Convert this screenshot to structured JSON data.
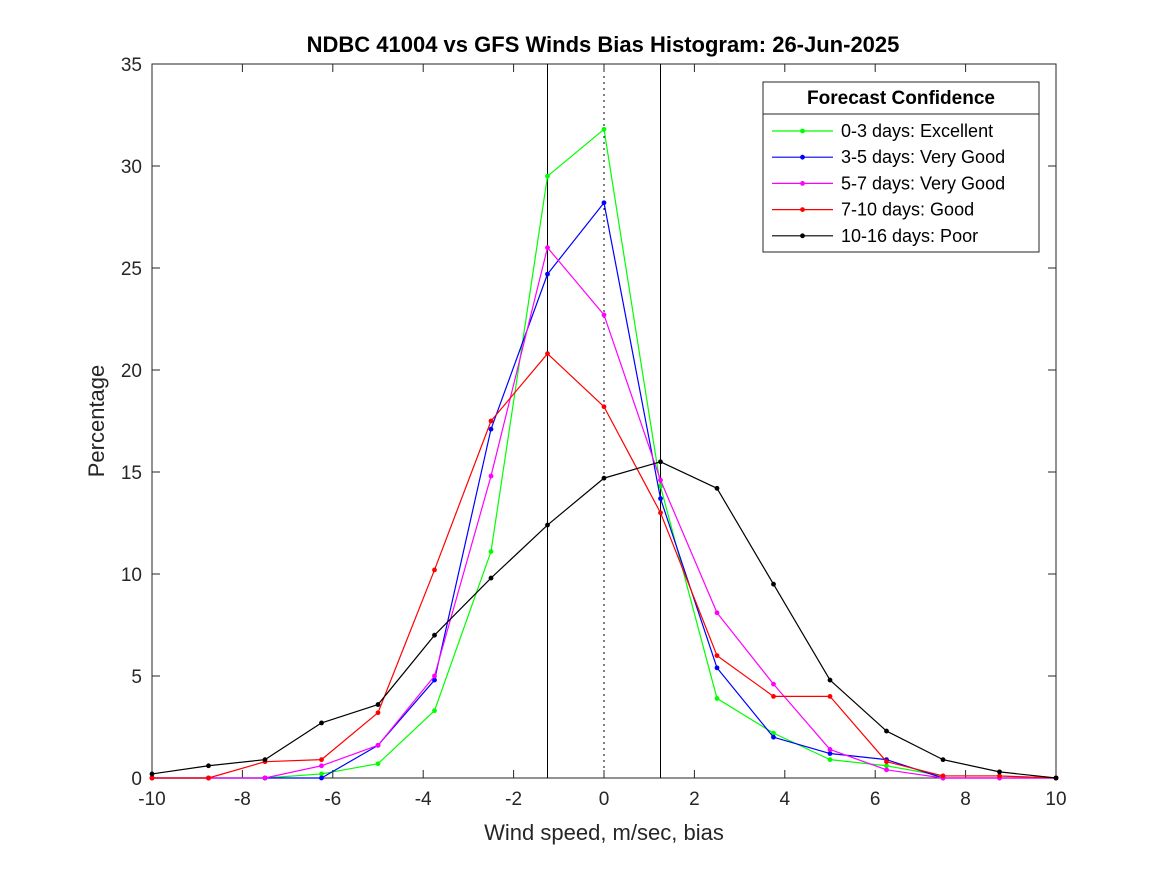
{
  "chart_data": {
    "type": "line",
    "title": "NDBC 41004 vs GFS Winds Bias Histogram: 26-Jun-2025",
    "xlabel": "Wind speed, m/sec, bias",
    "ylabel": "Percentage",
    "xlim": [
      -10,
      10
    ],
    "ylim": [
      0,
      35
    ],
    "xticks": [
      -10,
      -8,
      -6,
      -4,
      -2,
      0,
      2,
      4,
      6,
      8,
      10
    ],
    "yticks": [
      0,
      5,
      10,
      15,
      20,
      25,
      30,
      35
    ],
    "grid": false,
    "legend": {
      "title": "Forecast Confidence",
      "placement": "top-right"
    },
    "vertical_lines": [
      {
        "x": -1.25,
        "style": "solid"
      },
      {
        "x": 0,
        "style": "dotted"
      },
      {
        "x": 1.25,
        "style": "solid"
      }
    ],
    "x": [
      -10,
      -8.75,
      -7.5,
      -6.25,
      -5,
      -3.75,
      -2.5,
      -1.25,
      0,
      1.25,
      2.5,
      3.75,
      5,
      6.25,
      7.5,
      8.75,
      10
    ],
    "series": [
      {
        "name": "0-3 days: Excellent",
        "color": "#00ff00",
        "values": [
          0,
          0,
          0,
          0.2,
          0.7,
          3.3,
          11.1,
          29.5,
          31.8,
          14.3,
          3.9,
          2.2,
          0.9,
          0.6,
          0.1,
          0.1,
          0
        ]
      },
      {
        "name": "3-5 days: Very Good",
        "color": "#0000ff",
        "values": [
          0,
          0,
          0,
          0,
          1.6,
          4.8,
          17.1,
          24.7,
          28.2,
          13.7,
          5.4,
          2.0,
          1.2,
          0.9,
          0,
          0,
          0
        ]
      },
      {
        "name": "5-7 days: Very Good",
        "color": "#ff00ff",
        "values": [
          0,
          0,
          0,
          0.6,
          1.6,
          5.0,
          14.8,
          26.0,
          22.7,
          14.6,
          8.1,
          4.6,
          1.4,
          0.4,
          0,
          0,
          0
        ]
      },
      {
        "name": "7-10 days: Good",
        "color": "#ff0000",
        "values": [
          0,
          0,
          0.8,
          0.9,
          3.2,
          10.2,
          17.5,
          20.8,
          18.2,
          13.0,
          6.0,
          4.0,
          4.0,
          0.8,
          0.1,
          0.1,
          0
        ]
      },
      {
        "name": "10-16 days: Poor",
        "color": "#000000",
        "values": [
          0.2,
          0.6,
          0.9,
          2.7,
          3.6,
          7.0,
          9.8,
          12.4,
          14.7,
          15.5,
          14.2,
          9.5,
          4.8,
          2.3,
          0.9,
          0.3,
          0
        ]
      }
    ]
  }
}
